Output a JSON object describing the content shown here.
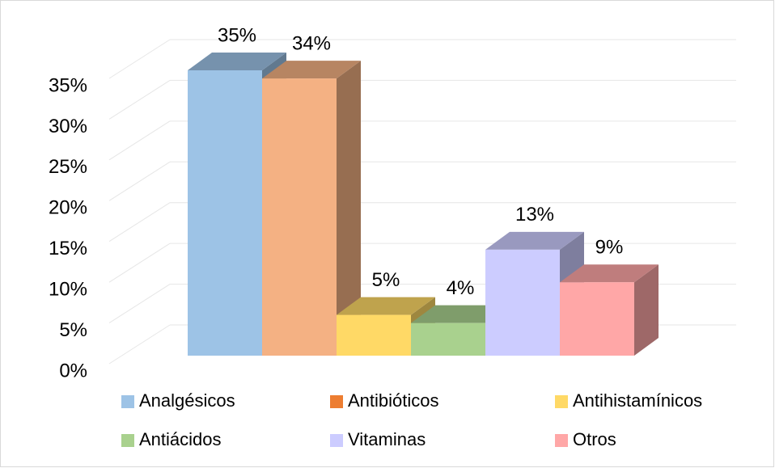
{
  "chart_data": {
    "type": "bar3d",
    "categories": [
      "Analgésicos",
      "Antibióticos",
      "Antihistamínicos",
      "Antiácidos",
      "Vitaminas",
      "Otros"
    ],
    "values": [
      35,
      34,
      5,
      4,
      13,
      9
    ],
    "value_labels": [
      "35%",
      "34%",
      "5%",
      "4%",
      "13%",
      "9%"
    ],
    "colors": [
      "#9dc3e6",
      "#f4b183",
      "#ffd966",
      "#a9d18e",
      "#ccccff",
      "#ffa7a7"
    ],
    "legend_colors": [
      "#9dc3e6",
      "#ed7d31",
      "#ffd966",
      "#a9d18e",
      "#ccccff",
      "#ffa7a7"
    ],
    "ylim": [
      0,
      35
    ],
    "yticks": [
      {
        "value": 0,
        "label": "0%"
      },
      {
        "value": 5,
        "label": "5%"
      },
      {
        "value": 10,
        "label": "10%"
      },
      {
        "value": 15,
        "label": "15%"
      },
      {
        "value": 20,
        "label": "20%"
      },
      {
        "value": 25,
        "label": "25%"
      },
      {
        "value": 30,
        "label": "30%"
      },
      {
        "value": 35,
        "label": "35%"
      }
    ],
    "grid": true,
    "legend": "bottom"
  }
}
